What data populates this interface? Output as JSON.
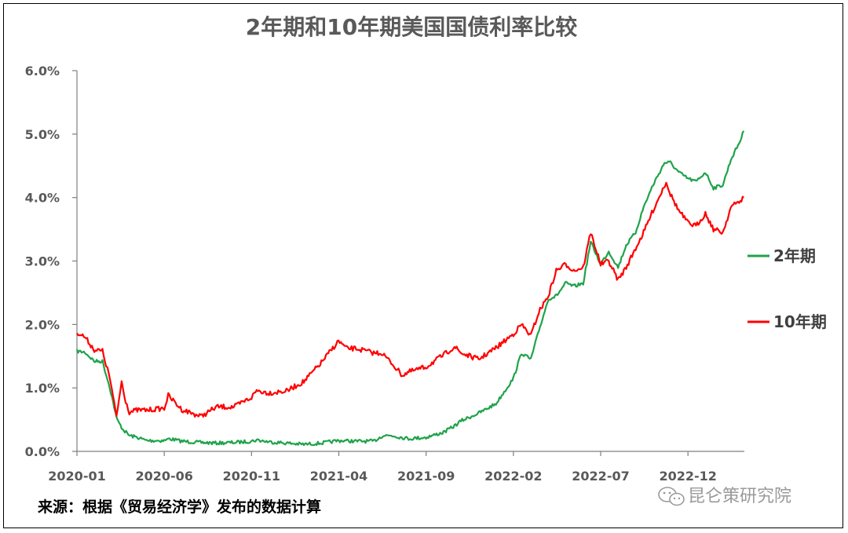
{
  "chart_data": {
    "type": "line",
    "title": "2年期和10年期美国国债利率比较",
    "ylim": [
      0,
      6
    ],
    "xlim": [
      "2020-01",
      "2023-03"
    ],
    "y_ticks": [
      "0.0%",
      "1.0%",
      "2.0%",
      "3.0%",
      "4.0%",
      "5.0%",
      "6.0%"
    ],
    "x_ticks": [
      "2020-01",
      "2020-06",
      "2020-11",
      "2021-04",
      "2021-09",
      "2022-02",
      "2022-07",
      "2022-12"
    ],
    "legend_placement": "right",
    "series": [
      {
        "name": "2年期",
        "color": "#1fa34a",
        "x": [
          "2020-01-01",
          "2020-01-15",
          "2020-02-01",
          "2020-02-15",
          "2020-02-28",
          "2020-03-05",
          "2020-03-10",
          "2020-03-20",
          "2020-04-01",
          "2020-04-15",
          "2020-05-01",
          "2020-06-01",
          "2020-06-10",
          "2020-07-01",
          "2020-08-01",
          "2020-09-01",
          "2020-10-01",
          "2020-11-01",
          "2020-11-10",
          "2020-12-01",
          "2021-01-01",
          "2021-02-01",
          "2021-03-01",
          "2021-04-01",
          "2021-05-01",
          "2021-06-01",
          "2021-06-17",
          "2021-07-01",
          "2021-08-01",
          "2021-09-01",
          "2021-10-01",
          "2021-10-20",
          "2021-11-01",
          "2021-12-01",
          "2022-01-01",
          "2022-02-01",
          "2022-02-15",
          "2022-03-01",
          "2022-03-15",
          "2022-04-01",
          "2022-04-15",
          "2022-05-01",
          "2022-05-15",
          "2022-06-01",
          "2022-06-14",
          "2022-07-01",
          "2022-07-15",
          "2022-08-01",
          "2022-08-15",
          "2022-09-01",
          "2022-09-15",
          "2022-10-01",
          "2022-10-21",
          "2022-11-01",
          "2022-11-15",
          "2022-12-01",
          "2022-12-15",
          "2023-01-01",
          "2023-01-15",
          "2023-02-01",
          "2023-02-15",
          "2023-03-01",
          "2023-03-07"
        ],
        "values": [
          1.58,
          1.56,
          1.42,
          1.42,
          1.0,
          0.7,
          0.5,
          0.35,
          0.25,
          0.22,
          0.17,
          0.17,
          0.2,
          0.16,
          0.14,
          0.13,
          0.14,
          0.16,
          0.18,
          0.15,
          0.13,
          0.11,
          0.13,
          0.17,
          0.16,
          0.16,
          0.25,
          0.25,
          0.2,
          0.22,
          0.3,
          0.4,
          0.48,
          0.6,
          0.75,
          1.15,
          1.55,
          1.45,
          1.9,
          2.4,
          2.45,
          2.65,
          2.6,
          2.65,
          3.3,
          2.95,
          3.15,
          2.9,
          3.25,
          3.45,
          3.85,
          4.2,
          4.55,
          4.55,
          4.4,
          4.3,
          4.25,
          4.4,
          4.15,
          4.2,
          4.6,
          4.9,
          5.05
        ]
      },
      {
        "name": "10年期",
        "color": "#ff0000",
        "x": [
          "2020-01-01",
          "2020-01-15",
          "2020-02-01",
          "2020-02-15",
          "2020-02-28",
          "2020-03-05",
          "2020-03-09",
          "2020-03-18",
          "2020-03-25",
          "2020-04-01",
          "2020-04-15",
          "2020-05-01",
          "2020-06-01",
          "2020-06-08",
          "2020-07-01",
          "2020-08-04",
          "2020-09-01",
          "2020-10-01",
          "2020-11-01",
          "2020-11-10",
          "2020-12-01",
          "2021-01-01",
          "2021-02-01",
          "2021-03-01",
          "2021-03-31",
          "2021-04-15",
          "2021-05-01",
          "2021-06-01",
          "2021-06-15",
          "2021-07-01",
          "2021-07-20",
          "2021-08-01",
          "2021-09-01",
          "2021-10-01",
          "2021-10-20",
          "2021-11-01",
          "2021-12-01",
          "2022-01-01",
          "2022-02-01",
          "2022-02-15",
          "2022-03-01",
          "2022-03-15",
          "2022-04-01",
          "2022-04-15",
          "2022-05-01",
          "2022-05-15",
          "2022-06-01",
          "2022-06-14",
          "2022-07-01",
          "2022-07-15",
          "2022-08-01",
          "2022-08-15",
          "2022-09-01",
          "2022-09-15",
          "2022-10-01",
          "2022-10-24",
          "2022-11-01",
          "2022-11-15",
          "2022-12-01",
          "2022-12-15",
          "2023-01-01",
          "2023-01-15",
          "2023-02-01",
          "2023-02-15",
          "2023-03-01",
          "2023-03-07"
        ],
        "values": [
          1.88,
          1.8,
          1.6,
          1.58,
          1.15,
          0.75,
          0.55,
          1.1,
          0.8,
          0.62,
          0.65,
          0.65,
          0.68,
          0.88,
          0.66,
          0.55,
          0.7,
          0.7,
          0.85,
          0.96,
          0.92,
          0.95,
          1.1,
          1.4,
          1.74,
          1.62,
          1.62,
          1.55,
          1.55,
          1.4,
          1.2,
          1.25,
          1.33,
          1.52,
          1.65,
          1.55,
          1.45,
          1.63,
          1.85,
          2.0,
          1.82,
          2.2,
          2.45,
          2.85,
          2.95,
          2.85,
          2.9,
          3.45,
          2.95,
          3.0,
          2.7,
          2.9,
          3.2,
          3.45,
          3.8,
          4.25,
          4.05,
          3.8,
          3.6,
          3.55,
          3.75,
          3.5,
          3.45,
          3.85,
          3.95,
          4.0
        ]
      }
    ]
  },
  "source_text": "来源：根据《贸易经济学》发布的数据计算",
  "watermark": {
    "text": "昆仑策研究院",
    "icon": "wechat-icon"
  }
}
